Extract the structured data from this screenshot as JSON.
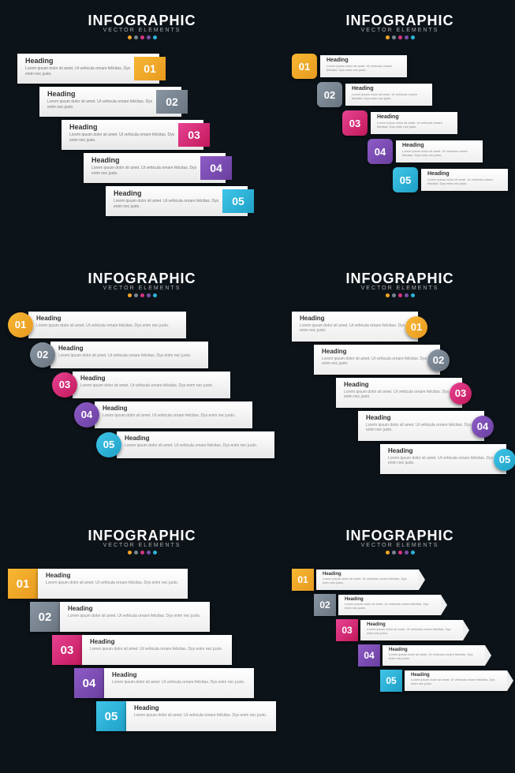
{
  "header": {
    "title": "INFOGRAPHIC",
    "subtitle": "VECTOR ELEMENTS"
  },
  "item": {
    "heading": "Heading",
    "body": "Lorem ipsum dolor sit amet. Ut vehicula ornare felicitas. Dys enim nec justo."
  },
  "numbers": [
    "01",
    "02",
    "03",
    "04",
    "05"
  ],
  "colors": {
    "bg": "#0d1419",
    "steps": [
      "#f5a623",
      "#7a8591",
      "#d63384",
      "#7b4fa8",
      "#2bb5d8"
    ],
    "stepsGrad": [
      [
        "#f7b733",
        "#e89a1f"
      ],
      [
        "#8a96a3",
        "#6a7581"
      ],
      [
        "#e84393",
        "#c2185b"
      ],
      [
        "#8e5cc7",
        "#6a3fa0"
      ],
      [
        "#3fc5e8",
        "#1fa0c7"
      ]
    ],
    "dots": [
      "#f5a623",
      "#7a8591",
      "#d63384",
      "#7b4fa8",
      "#2bb5d8"
    ],
    "card": "#ffffff",
    "text": "#333333",
    "muted": "#888888"
  },
  "layout": {
    "panels": 6,
    "stepsPerPanel": 5,
    "staggerOffsets": {
      "panel1": [
        12,
        40,
        68,
        96,
        124
      ],
      "panel2": [
        0,
        32,
        64,
        96,
        128
      ],
      "panel3": [
        0,
        28,
        56,
        84,
        112
      ],
      "panel4": [
        0,
        28,
        56,
        84,
        112
      ],
      "panel5": [
        0,
        28,
        56,
        84,
        112
      ],
      "panel6": [
        0,
        28,
        56,
        84,
        112
      ]
    },
    "cardWidths": {
      "panel1": 180,
      "panel2": 110,
      "panel3": 200,
      "panel4": 160,
      "panel5": 190,
      "panel6": 130
    }
  }
}
